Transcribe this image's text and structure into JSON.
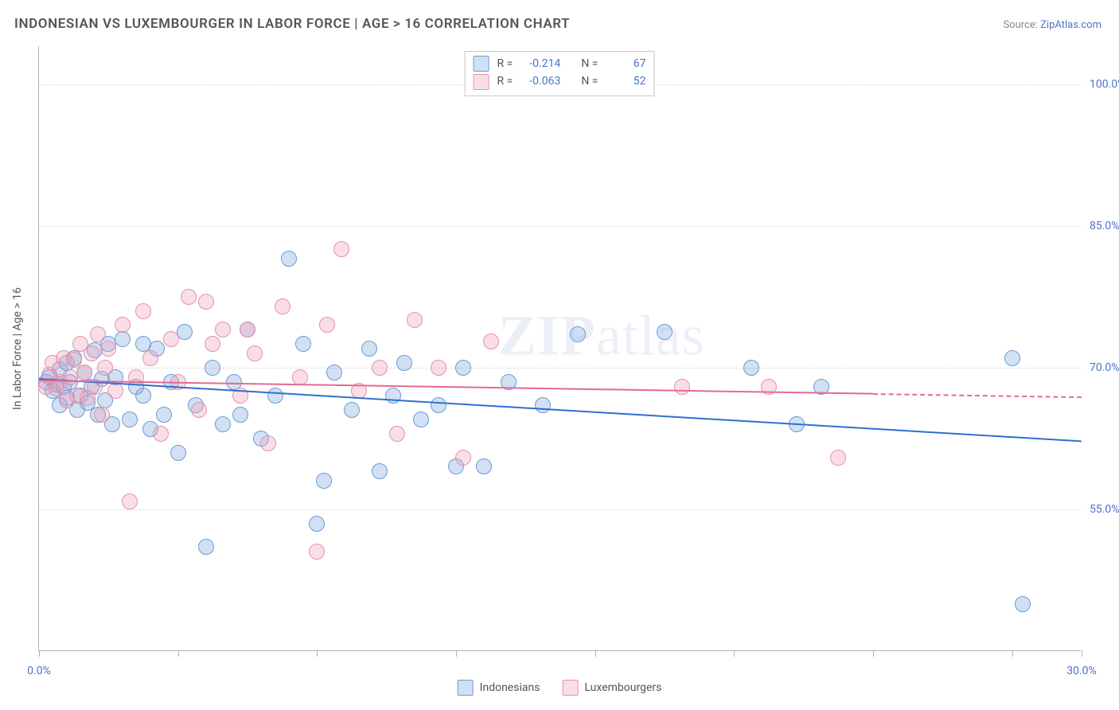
{
  "title": "INDONESIAN VS LUXEMBOURGER IN LABOR FORCE | AGE > 16 CORRELATION CHART",
  "source_label": "Source:",
  "source_name": "ZipAtlas.com",
  "y_axis_label": "In Labor Force | Age > 16",
  "watermark_a": "ZIP",
  "watermark_b": "atlas",
  "chart": {
    "type": "scatter-with-trend",
    "background_color": "#ffffff",
    "grid_color": "#dcdcdc",
    "axis_color": "#b0b0b0",
    "value_color": "#4a74c9",
    "text_color": "#555555",
    "xlim": [
      0,
      30
    ],
    "ylim": [
      40,
      104
    ],
    "x_ticks": [
      0,
      4,
      8,
      12,
      16,
      20,
      24,
      28,
      30
    ],
    "x_tick_labels": {
      "0": "0.0%",
      "30": "30.0%"
    },
    "y_ticks": [
      55,
      70,
      85,
      100
    ],
    "y_tick_labels": {
      "55": "55.0%",
      "70": "70.0%",
      "85": "85.0%",
      "100": "100.0%"
    },
    "point_radius": 9,
    "point_stroke_width": 1.2,
    "trend_width": 2.4
  },
  "series": [
    {
      "key": "indonesians",
      "name": "Indonesians",
      "fill": "rgba(124, 168, 222, 0.35)",
      "stroke": "#6b9bd6",
      "line_color": "#2f6fd0",
      "R": "-0.214",
      "N": "67",
      "trend": {
        "x1": 0,
        "y1": 68.8,
        "x2": 30,
        "y2": 62.2
      },
      "points": [
        [
          0.2,
          68.5
        ],
        [
          0.3,
          69.0
        ],
        [
          0.4,
          67.5
        ],
        [
          0.5,
          68.2
        ],
        [
          0.6,
          69.8
        ],
        [
          0.6,
          66.0
        ],
        [
          0.7,
          68.0
        ],
        [
          0.8,
          70.5
        ],
        [
          0.8,
          66.8
        ],
        [
          0.9,
          68.5
        ],
        [
          1.0,
          71.0
        ],
        [
          1.1,
          65.5
        ],
        [
          1.2,
          67.0
        ],
        [
          1.3,
          69.5
        ],
        [
          1.4,
          66.3
        ],
        [
          1.5,
          68.0
        ],
        [
          1.6,
          71.8
        ],
        [
          1.7,
          65.0
        ],
        [
          1.8,
          68.8
        ],
        [
          1.9,
          66.5
        ],
        [
          2.0,
          72.5
        ],
        [
          2.1,
          64.0
        ],
        [
          2.2,
          69.0
        ],
        [
          2.4,
          73.0
        ],
        [
          2.6,
          64.5
        ],
        [
          2.8,
          68.0
        ],
        [
          3.0,
          67.0
        ],
        [
          3.2,
          63.5
        ],
        [
          3.4,
          72.0
        ],
        [
          3.6,
          65.0
        ],
        [
          3.8,
          68.5
        ],
        [
          4.0,
          61.0
        ],
        [
          4.2,
          73.8
        ],
        [
          4.5,
          66.0
        ],
        [
          4.8,
          51.0
        ],
        [
          5.0,
          70.0
        ],
        [
          5.3,
          64.0
        ],
        [
          5.6,
          68.5
        ],
        [
          6.0,
          74.0
        ],
        [
          6.4,
          62.5
        ],
        [
          6.8,
          67.0
        ],
        [
          7.2,
          81.5
        ],
        [
          7.6,
          72.5
        ],
        [
          8.0,
          53.5
        ],
        [
          8.2,
          58.0
        ],
        [
          8.5,
          69.5
        ],
        [
          9.0,
          65.5
        ],
        [
          9.5,
          72.0
        ],
        [
          9.8,
          59.0
        ],
        [
          10.2,
          67.0
        ],
        [
          10.5,
          70.5
        ],
        [
          11.0,
          64.5
        ],
        [
          11.5,
          66.0
        ],
        [
          12.0,
          59.5
        ],
        [
          12.2,
          70.0
        ],
        [
          12.8,
          59.5
        ],
        [
          13.5,
          68.5
        ],
        [
          14.5,
          66.0
        ],
        [
          15.5,
          73.5
        ],
        [
          18.0,
          73.8
        ],
        [
          20.5,
          70.0
        ],
        [
          21.8,
          64.0
        ],
        [
          22.5,
          68.0
        ],
        [
          28.0,
          71.0
        ],
        [
          28.3,
          45.0
        ],
        [
          3.0,
          72.5
        ],
        [
          5.8,
          65.0
        ]
      ]
    },
    {
      "key": "luxembourgers",
      "name": "Luxembourgers",
      "fill": "rgba(240, 160, 185, 0.35)",
      "stroke": "#e391ad",
      "line_color": "#e46a93",
      "R": "-0.063",
      "N": "52",
      "trend": {
        "x1": 0,
        "y1": 68.6,
        "x2": 24,
        "y2": 67.2,
        "dashed_to": 30
      },
      "points": [
        [
          0.2,
          68.0
        ],
        [
          0.3,
          69.2
        ],
        [
          0.4,
          70.5
        ],
        [
          0.5,
          67.8
        ],
        [
          0.6,
          68.5
        ],
        [
          0.7,
          71.0
        ],
        [
          0.8,
          66.5
        ],
        [
          0.9,
          69.0
        ],
        [
          1.0,
          70.8
        ],
        [
          1.1,
          67.0
        ],
        [
          1.2,
          72.5
        ],
        [
          1.3,
          69.5
        ],
        [
          1.4,
          66.8
        ],
        [
          1.5,
          71.5
        ],
        [
          1.6,
          68.0
        ],
        [
          1.7,
          73.5
        ],
        [
          1.8,
          65.0
        ],
        [
          1.9,
          70.0
        ],
        [
          2.0,
          72.0
        ],
        [
          2.2,
          67.5
        ],
        [
          2.4,
          74.5
        ],
        [
          2.6,
          55.8
        ],
        [
          2.8,
          69.0
        ],
        [
          3.0,
          76.0
        ],
        [
          3.2,
          71.0
        ],
        [
          3.5,
          63.0
        ],
        [
          3.8,
          73.0
        ],
        [
          4.0,
          68.5
        ],
        [
          4.3,
          77.5
        ],
        [
          4.6,
          65.5
        ],
        [
          5.0,
          72.5
        ],
        [
          5.3,
          74.0
        ],
        [
          5.8,
          67.0
        ],
        [
          6.2,
          71.5
        ],
        [
          6.6,
          62.0
        ],
        [
          7.0,
          76.5
        ],
        [
          7.5,
          69.0
        ],
        [
          8.0,
          50.5
        ],
        [
          8.3,
          74.5
        ],
        [
          8.7,
          82.5
        ],
        [
          9.2,
          67.5
        ],
        [
          9.8,
          70.0
        ],
        [
          10.3,
          63.0
        ],
        [
          10.8,
          75.0
        ],
        [
          11.5,
          70.0
        ],
        [
          12.2,
          60.5
        ],
        [
          13.0,
          72.8
        ],
        [
          18.5,
          68.0
        ],
        [
          21.0,
          68.0
        ],
        [
          23.0,
          60.5
        ],
        [
          4.8,
          77.0
        ],
        [
          6.0,
          74.0
        ]
      ]
    }
  ],
  "info_box": {
    "R_label": "R =",
    "N_label": "N ="
  },
  "legend": {
    "label_a": "Indonesians",
    "label_b": "Luxembourgers"
  }
}
